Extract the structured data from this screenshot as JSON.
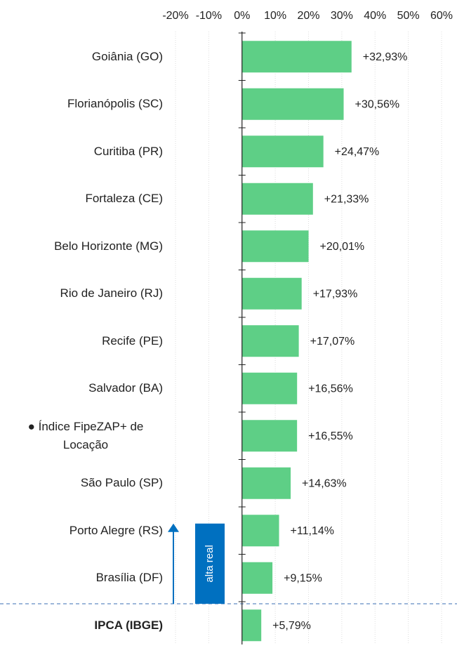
{
  "chart_data": {
    "type": "bar",
    "orientation": "horizontal",
    "categories": [
      "Goiânia (GO)",
      "Florianópolis (SC)",
      "Curitiba (PR)",
      "Fortaleza (CE)",
      "Belo Horizonte (MG)",
      "Rio de Janeiro (RJ)",
      "Recife (PE)",
      "Salvador (BA)",
      "● Índice FipeZAP+ de Locação",
      "São Paulo (SP)",
      "Porto Alegre (RS)",
      "Brasília (DF)",
      "IPCA (IBGE)"
    ],
    "values": [
      32.93,
      30.56,
      24.47,
      21.33,
      20.01,
      17.93,
      17.07,
      16.56,
      16.55,
      14.63,
      11.14,
      9.15,
      5.79
    ],
    "value_labels": [
      "+32,93%",
      "+30,56%",
      "+24,47%",
      "+21,33%",
      "+20,01%",
      "+17,93%",
      "+17,07%",
      "+16,56%",
      "+16,55%",
      "+14,63%",
      "+11,14%",
      "+9,15%",
      "+5,79%"
    ],
    "color": "#5ecf86",
    "xlim": [
      -20,
      60
    ],
    "xticks": [
      {
        "value": -20,
        "label": "-20%"
      },
      {
        "value": -10,
        "label": "-10%"
      },
      {
        "value": 0,
        "label": "0%"
      },
      {
        "value": 10,
        "label": "10%"
      },
      {
        "value": 20,
        "label": "20%"
      },
      {
        "value": 30,
        "label": "30%"
      },
      {
        "value": 40,
        "label": "40%"
      },
      {
        "value": 50,
        "label": "50%"
      },
      {
        "value": 60,
        "label": "60%"
      }
    ],
    "grid": true,
    "annotation": "alta real"
  }
}
